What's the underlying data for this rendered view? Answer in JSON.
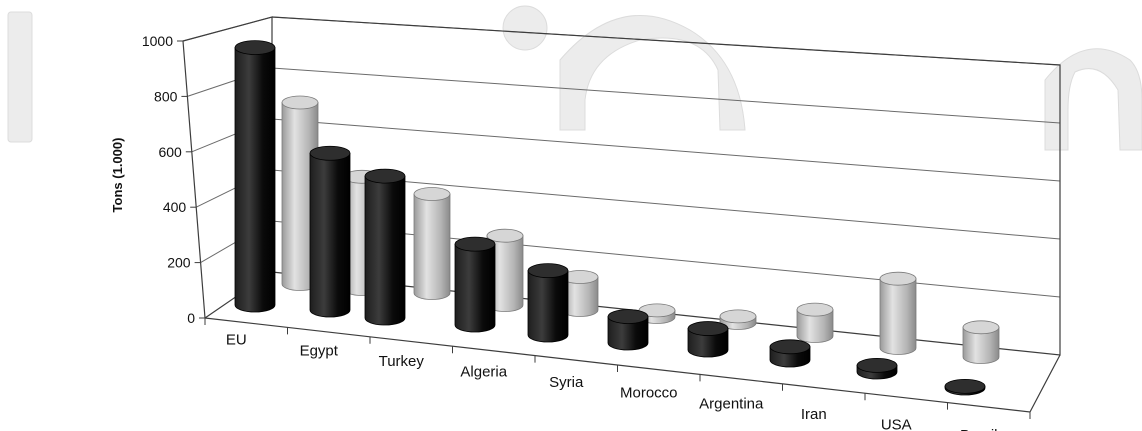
{
  "chart_data": {
    "type": "bar",
    "subtype": "3d-cylinder-grouped",
    "ylabel": "Tons (1.000)",
    "ylim": [
      0,
      1000
    ],
    "yticks": [
      "0",
      "200",
      "400",
      "600",
      "800",
      "1000"
    ],
    "categories": [
      "EU",
      "Egypt",
      "Turkey",
      "Algeria",
      "Syria",
      "Morocco",
      "Argentina",
      "Iran",
      "USA",
      "Brazil"
    ],
    "series": [
      {
        "values": [
          780,
          475,
          430,
          245,
          195,
          80,
          65,
          40,
          20,
          5
        ],
        "color": "#0a0a0a"
      },
      {
        "values": [
          550,
          340,
          300,
          210,
          100,
          20,
          20,
          80,
          210,
          90
        ],
        "color": "#b8b8b8"
      }
    ],
    "grid": true,
    "legend": "none"
  },
  "watermark": {
    "text": "In"
  }
}
